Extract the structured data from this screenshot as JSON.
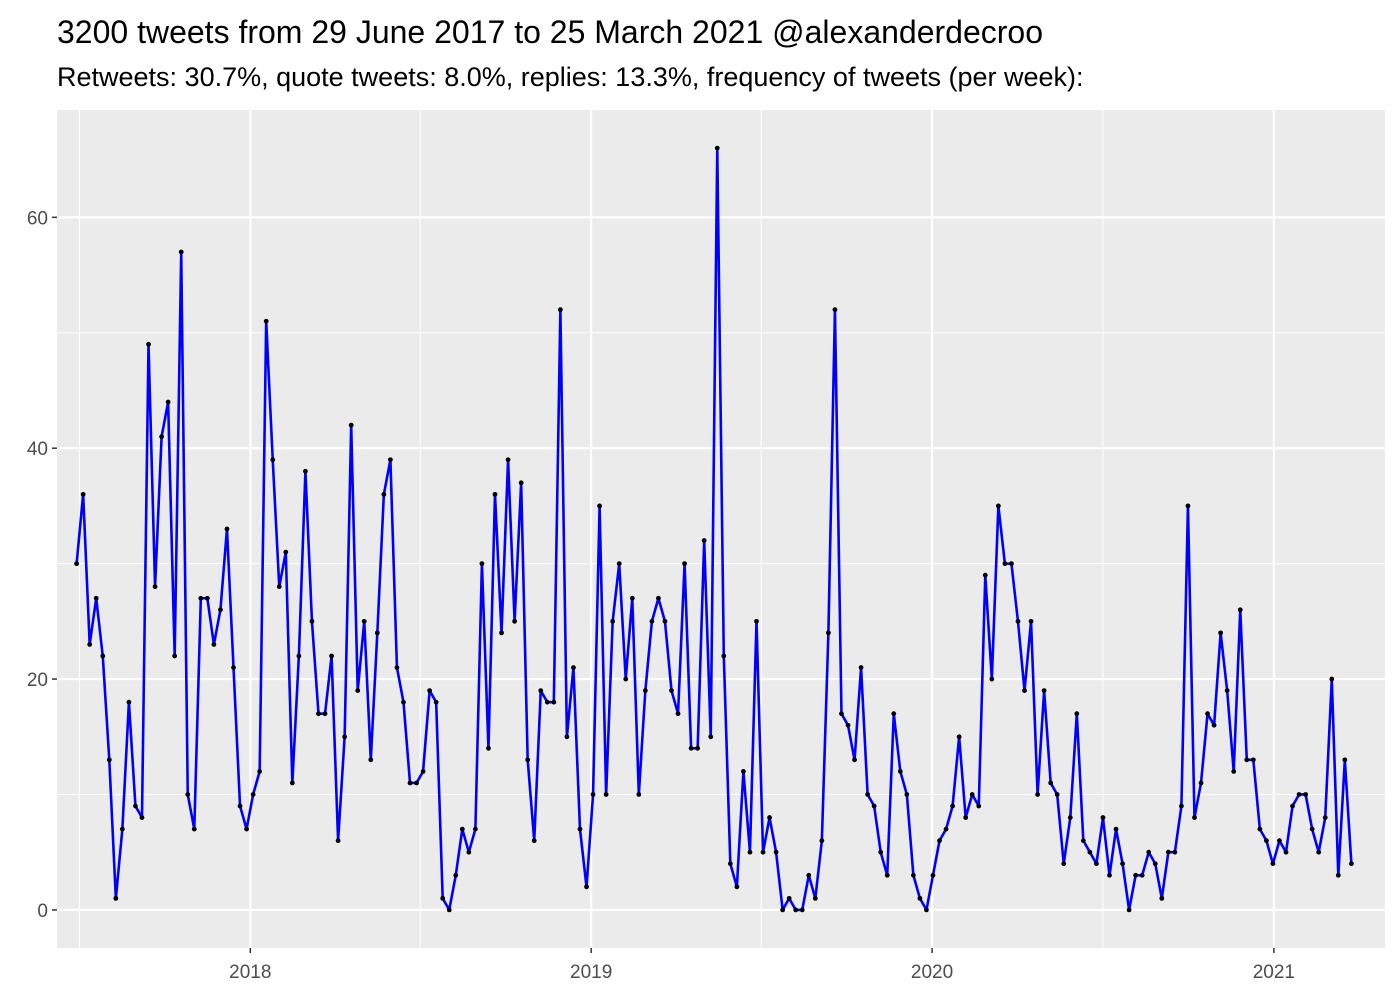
{
  "chart_data": {
    "type": "line",
    "title": "3200 tweets from 29 June 2017 to 25 March 2021 @alexanderdecroo",
    "subtitle": "Retweets: 30.7%, quote tweets: 8.0%, replies: 13.3%, frequency of tweets (per week):",
    "xlabel": "",
    "ylabel": "",
    "x_axis": {
      "type": "date",
      "range": [
        "2017-06-08",
        "2021-04-30"
      ],
      "ticks": [
        {
          "date": "2018-01-01",
          "label": "2018"
        },
        {
          "date": "2019-01-01",
          "label": "2019"
        },
        {
          "date": "2020-01-01",
          "label": "2020"
        },
        {
          "date": "2021-01-01",
          "label": "2021"
        }
      ]
    },
    "y_axis": {
      "range": [
        -3.3,
        69.3
      ],
      "ticks": [
        0,
        20,
        40,
        60
      ]
    },
    "grid": true,
    "background": "#ebebeb",
    "grid_color": "#ffffff",
    "line_color": "#0000ff",
    "point_color": "#000000",
    "series": [
      {
        "x": [
          "2017-06-29",
          "2017-07-06",
          "2017-07-13",
          "2017-07-20",
          "2017-07-27",
          "2017-08-03",
          "2017-08-10",
          "2017-08-17",
          "2017-08-24",
          "2017-08-31",
          "2017-09-07",
          "2017-09-14",
          "2017-09-21",
          "2017-09-28",
          "2017-10-05",
          "2017-10-12",
          "2017-10-19",
          "2017-10-26",
          "2017-11-02",
          "2017-11-09",
          "2017-11-16",
          "2017-11-23",
          "2017-11-30",
          "2017-12-07",
          "2017-12-14",
          "2017-12-21",
          "2017-12-28",
          "2018-01-04",
          "2018-01-11",
          "2018-01-18",
          "2018-01-25",
          "2018-02-01",
          "2018-02-08",
          "2018-02-15",
          "2018-02-22",
          "2018-03-01",
          "2018-03-08",
          "2018-03-15",
          "2018-03-22",
          "2018-03-29",
          "2018-04-05",
          "2018-04-12",
          "2018-04-19",
          "2018-04-26",
          "2018-05-03",
          "2018-05-10",
          "2018-05-17",
          "2018-05-24",
          "2018-05-31",
          "2018-06-07",
          "2018-06-14",
          "2018-06-21",
          "2018-06-28",
          "2018-07-05",
          "2018-07-12",
          "2018-07-19",
          "2018-07-26",
          "2018-08-02",
          "2018-08-09",
          "2018-08-16",
          "2018-08-23",
          "2018-08-30",
          "2018-09-06",
          "2018-09-13",
          "2018-09-20",
          "2018-09-27",
          "2018-10-04",
          "2018-10-11",
          "2018-10-18",
          "2018-10-25",
          "2018-11-01",
          "2018-11-08",
          "2018-11-15",
          "2018-11-22",
          "2018-11-29",
          "2018-12-06",
          "2018-12-13",
          "2018-12-20",
          "2018-12-27",
          "2019-01-03",
          "2019-01-10",
          "2019-01-17",
          "2019-01-24",
          "2019-01-31",
          "2019-02-07",
          "2019-02-14",
          "2019-02-21",
          "2019-02-28",
          "2019-03-07",
          "2019-03-14",
          "2019-03-21",
          "2019-03-28",
          "2019-04-04",
          "2019-04-11",
          "2019-04-18",
          "2019-04-25",
          "2019-05-02",
          "2019-05-09",
          "2019-05-16",
          "2019-05-23",
          "2019-05-30",
          "2019-06-06",
          "2019-06-13",
          "2019-06-20",
          "2019-06-27",
          "2019-07-04",
          "2019-07-11",
          "2019-07-18",
          "2019-07-25",
          "2019-08-01",
          "2019-08-08",
          "2019-08-15",
          "2019-08-22",
          "2019-08-29",
          "2019-09-05",
          "2019-09-12",
          "2019-09-19",
          "2019-09-26",
          "2019-10-03",
          "2019-10-10",
          "2019-10-17",
          "2019-10-24",
          "2019-10-31",
          "2019-11-07",
          "2019-11-14",
          "2019-11-21",
          "2019-11-28",
          "2019-12-05",
          "2019-12-12",
          "2019-12-19",
          "2019-12-26",
          "2020-01-02",
          "2020-01-09",
          "2020-01-16",
          "2020-01-23",
          "2020-01-30",
          "2020-02-06",
          "2020-02-13",
          "2020-02-20",
          "2020-02-27",
          "2020-03-05",
          "2020-03-12",
          "2020-03-19",
          "2020-03-26",
          "2020-04-02",
          "2020-04-09",
          "2020-04-16",
          "2020-04-23",
          "2020-04-30",
          "2020-05-07",
          "2020-05-14",
          "2020-05-21",
          "2020-05-28",
          "2020-06-04",
          "2020-06-11",
          "2020-06-18",
          "2020-06-25",
          "2020-07-02",
          "2020-07-09",
          "2020-07-16",
          "2020-07-23",
          "2020-07-30",
          "2020-08-06",
          "2020-08-13",
          "2020-08-20",
          "2020-08-27",
          "2020-09-03",
          "2020-09-10",
          "2020-09-17",
          "2020-09-24",
          "2020-10-01",
          "2020-10-08",
          "2020-10-15",
          "2020-10-22",
          "2020-10-29",
          "2020-11-05",
          "2020-11-12",
          "2020-11-19",
          "2020-11-26",
          "2020-12-03",
          "2020-12-10",
          "2020-12-17",
          "2020-12-24",
          "2020-12-31",
          "2021-01-07",
          "2021-01-14",
          "2021-01-21",
          "2021-01-28",
          "2021-02-04",
          "2021-02-11",
          "2021-02-18",
          "2021-02-25",
          "2021-03-04",
          "2021-03-11",
          "2021-03-18",
          "2021-03-25"
        ],
        "values": [
          30,
          36,
          23,
          27,
          22,
          13,
          1,
          7,
          18,
          9,
          8,
          49,
          28,
          41,
          44,
          22,
          57,
          10,
          7,
          27,
          27,
          23,
          26,
          33,
          21,
          9,
          7,
          10,
          12,
          51,
          39,
          28,
          31,
          11,
          22,
          38,
          25,
          17,
          17,
          22,
          6,
          15,
          42,
          19,
          25,
          13,
          24,
          36,
          39,
          21,
          18,
          11,
          11,
          12,
          19,
          18,
          1,
          0,
          3,
          7,
          5,
          7,
          30,
          14,
          36,
          24,
          39,
          25,
          37,
          13,
          6,
          19,
          18,
          18,
          52,
          15,
          21,
          7,
          2,
          10,
          35,
          10,
          25,
          30,
          20,
          27,
          10,
          19,
          25,
          27,
          25,
          19,
          17,
          30,
          14,
          14,
          32,
          15,
          66,
          22,
          4,
          2,
          12,
          5,
          25,
          5,
          8,
          5,
          0,
          1,
          0,
          0,
          3,
          1,
          6,
          24,
          52,
          17,
          16,
          13,
          21,
          10,
          9,
          5,
          3,
          17,
          12,
          10,
          3,
          1,
          0,
          3,
          6,
          7,
          9,
          15,
          8,
          10,
          9,
          29,
          20,
          35,
          30,
          30,
          25,
          19,
          25,
          10,
          19,
          11,
          10,
          4,
          8,
          17,
          6,
          5,
          4,
          8,
          3,
          7,
          4,
          0,
          3,
          3,
          5,
          4,
          1,
          5,
          5,
          9,
          35,
          8,
          11,
          17,
          16,
          24,
          19,
          12,
          26,
          13,
          13,
          7,
          6,
          4,
          6,
          5,
          9,
          10,
          10,
          7,
          5,
          8,
          20,
          3,
          13,
          4
        ]
      }
    ]
  }
}
